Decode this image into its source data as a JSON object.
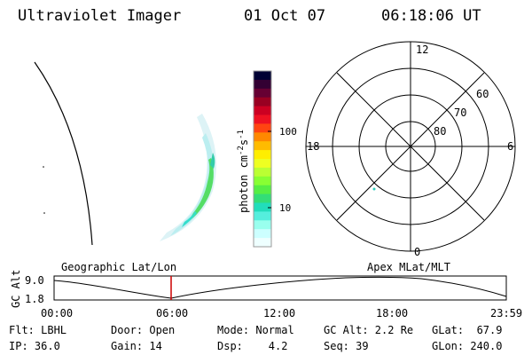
{
  "header": {
    "instrument": "Ultraviolet Imager",
    "date": "01 Oct 07",
    "time": "06:18:06 UT"
  },
  "colorbar": {
    "label": "photon cm",
    "label_exp1": "-2",
    "label_s": "s",
    "label_exp2": "-1",
    "ticks": [
      "100",
      "10"
    ],
    "colors": [
      "#000033",
      "#330033",
      "#660033",
      "#990022",
      "#cc0022",
      "#ee1122",
      "#ff4411",
      "#ff8800",
      "#ffbb00",
      "#ffee00",
      "#eeff22",
      "#bbff33",
      "#88ff33",
      "#55ee44",
      "#33dd77",
      "#22ddbb",
      "#55eedd",
      "#99ffee",
      "#ccffff",
      "#eeffff"
    ]
  },
  "polar": {
    "mlt_labels": {
      "top": "12",
      "left": "18",
      "right": "6",
      "bottom": "0"
    },
    "lat_labels": [
      "60",
      "70",
      "80"
    ]
  },
  "timeline": {
    "y_label": "GC Alt",
    "y_ticks": [
      "9.0",
      "1.8"
    ],
    "left_title": "Geographic Lat/Lon",
    "right_title": "Apex  MLat/MLT",
    "x_ticks": [
      "00:00",
      "06:00",
      "12:00",
      "18:00",
      "23:59"
    ],
    "marker_color": "#cc0000"
  },
  "info": {
    "flt": "Flt: LBHL",
    "ip": "IP: 36.0",
    "door": "Door: Open",
    "gain": "Gain: 14",
    "mode": "Mode: Normal",
    "dsp": "Dsp:    4.2",
    "gcalt": "GC Alt: 2.2 Re",
    "seq": "Seq: 39",
    "glat": "GLat:  67.9",
    "glon": "GLon: 240.0"
  }
}
